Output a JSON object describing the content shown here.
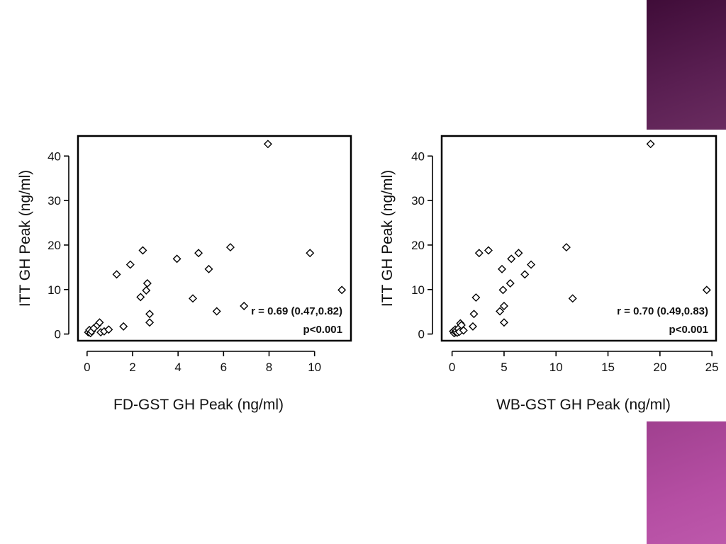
{
  "slide": {
    "accent_top": "#4f1747",
    "accent_bottom": "#b04c9f"
  },
  "chart_data": [
    {
      "type": "scatter",
      "title": "",
      "xlabel": "FD-GST GH Peak (ng/ml)",
      "ylabel": "ITT GH Peak (ng/ml)",
      "xlim": [
        -0.4,
        11.6
      ],
      "ylim": [
        -1.5,
        44.5
      ],
      "xticks": [
        0,
        2,
        4,
        6,
        8,
        10
      ],
      "yticks": [
        0,
        10,
        20,
        30,
        40
      ],
      "grid": false,
      "marker": "diamond",
      "annotation": [
        "r = 0.69 (0.47,0.82)",
        "p<0.001"
      ],
      "points": [
        [
          0.05,
          0.4
        ],
        [
          0.1,
          0.9
        ],
        [
          0.15,
          0.2
        ],
        [
          0.2,
          0.6
        ],
        [
          0.3,
          1.3
        ],
        [
          0.45,
          2.0
        ],
        [
          0.55,
          2.6
        ],
        [
          0.6,
          0.4
        ],
        [
          0.75,
          0.6
        ],
        [
          0.95,
          1.0
        ],
        [
          1.3,
          13.4
        ],
        [
          1.6,
          1.7
        ],
        [
          1.9,
          15.6
        ],
        [
          2.35,
          8.3
        ],
        [
          2.45,
          18.8
        ],
        [
          2.6,
          9.8
        ],
        [
          2.65,
          11.4
        ],
        [
          2.75,
          4.5
        ],
        [
          2.75,
          2.6
        ],
        [
          3.95,
          16.9
        ],
        [
          4.65,
          8.0
        ],
        [
          4.9,
          18.2
        ],
        [
          5.35,
          14.6
        ],
        [
          5.7,
          5.1
        ],
        [
          6.3,
          19.5
        ],
        [
          6.9,
          6.3
        ],
        [
          7.95,
          42.7
        ],
        [
          9.8,
          18.2
        ],
        [
          11.2,
          9.9
        ]
      ]
    },
    {
      "type": "scatter",
      "title": "",
      "xlabel": "WB-GST GH Peak (ng/ml)",
      "ylabel": "ITT GH Peak (ng/ml)",
      "xlim": [
        -1.0,
        25.4
      ],
      "ylim": [
        -1.5,
        44.5
      ],
      "xticks": [
        0,
        5,
        10,
        15,
        20,
        25
      ],
      "yticks": [
        0,
        10,
        20,
        30,
        40
      ],
      "grid": false,
      "marker": "diamond",
      "annotation": [
        "r = 0.70 (0.49,0.83)",
        "p<0.001"
      ],
      "points": [
        [
          0.1,
          0.6
        ],
        [
          0.2,
          0.2
        ],
        [
          0.3,
          1.0
        ],
        [
          0.35,
          0.4
        ],
        [
          0.4,
          0.7
        ],
        [
          0.5,
          0.3
        ],
        [
          0.6,
          1.2
        ],
        [
          0.7,
          0.5
        ],
        [
          0.8,
          2.4
        ],
        [
          0.9,
          2.0
        ],
        [
          1.1,
          0.8
        ],
        [
          2.0,
          1.7
        ],
        [
          2.1,
          4.5
        ],
        [
          2.3,
          8.2
        ],
        [
          2.6,
          18.2
        ],
        [
          3.5,
          18.8
        ],
        [
          4.6,
          5.1
        ],
        [
          4.8,
          14.6
        ],
        [
          4.9,
          9.9
        ],
        [
          5.0,
          6.3
        ],
        [
          5.0,
          2.6
        ],
        [
          5.6,
          11.4
        ],
        [
          5.7,
          16.9
        ],
        [
          6.4,
          18.2
        ],
        [
          7.0,
          13.4
        ],
        [
          7.6,
          15.6
        ],
        [
          11.0,
          19.5
        ],
        [
          11.6,
          8.0
        ],
        [
          19.1,
          42.7
        ],
        [
          24.5,
          9.9
        ]
      ]
    }
  ]
}
